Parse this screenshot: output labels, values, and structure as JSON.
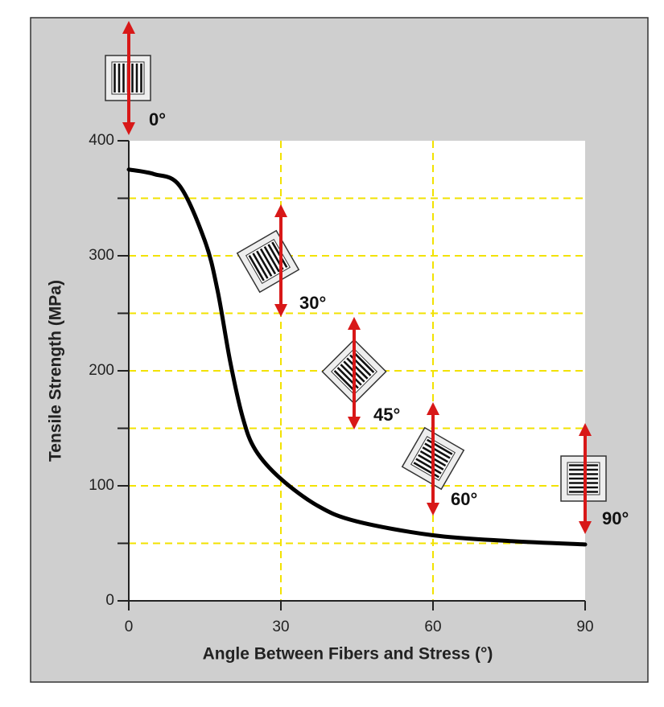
{
  "chart_data": {
    "type": "line",
    "xlabel": "Angle Between Fibers and Stress (°)",
    "ylabel": "Tensile Strength (MPa)",
    "x": [
      0,
      5,
      10,
      15,
      17.5,
      20,
      22.5,
      25,
      30,
      37.5,
      45,
      60,
      75,
      90
    ],
    "values": [
      375,
      371,
      361,
      313,
      270,
      208,
      159,
      131,
      106,
      82,
      69,
      57,
      52,
      49
    ],
    "color": "#000000",
    "xlim": [
      0,
      90
    ],
    "xticks": [
      0,
      30,
      60,
      90
    ],
    "ylim": [
      0,
      400
    ],
    "yticks": [
      0,
      100,
      200,
      300,
      400
    ],
    "minor_yticks": [
      50,
      150,
      250,
      350
    ],
    "grid": true,
    "grid_color": "#f2e200",
    "annotations": [
      "0°",
      "30°",
      "45°",
      "60°",
      "90°"
    ]
  }
}
